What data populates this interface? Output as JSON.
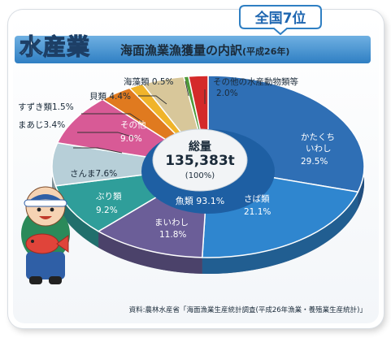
{
  "header": {
    "title": "水産業",
    "subtitle": "海面漁業漁獲量の内訳",
    "subtitle_year": "(平成26年)",
    "rank_badge": "全国7位"
  },
  "center": {
    "total_label": "総量",
    "total_value": "135,383t",
    "total_pct": "(100%)",
    "fish_label": "魚類 93.1%"
  },
  "source": "資料:農林水産省「海面漁業生産統計調査(平成26年漁業・養殖業生産統計)」",
  "colors": {
    "katakuchi": "#2f6fb5",
    "saba": "#2f86cf",
    "maiwashi": "#6b5e98",
    "buri": "#2f9e9a",
    "sanma": "#b7cfd8",
    "sonota": "#d85a96",
    "maaji": "#e07a1f",
    "suzuki": "#f0b42a",
    "kai": "#d8c79a",
    "kaiso": "#4f9a3a",
    "others": "#d42a2a"
  },
  "chart_data": {
    "type": "pie",
    "title": "海面漁業漁獲量の内訳(平成26年)",
    "total": "135,383t",
    "slices": [
      {
        "label": "かたくちいわし",
        "value": 29.5,
        "color_key": "katakuchi"
      },
      {
        "label": "さば類",
        "value": 21.1,
        "color_key": "saba"
      },
      {
        "label": "まいわし",
        "value": 11.8,
        "color_key": "maiwashi"
      },
      {
        "label": "ぶり類",
        "value": 9.2,
        "color_key": "buri"
      },
      {
        "label": "さんま",
        "value": 7.6,
        "color_key": "sanma"
      },
      {
        "label": "その他",
        "value": 9.0,
        "color_key": "sonota"
      },
      {
        "label": "まあじ",
        "value": 3.4,
        "color_key": "maaji"
      },
      {
        "label": "すずき類",
        "value": 1.5,
        "color_key": "suzuki"
      },
      {
        "label": "貝類",
        "value": 4.4,
        "color_key": "kai"
      },
      {
        "label": "海藻類",
        "value": 0.5,
        "color_key": "kaiso"
      },
      {
        "label": "その他の水産動物類等",
        "value": 2.0,
        "color_key": "others"
      }
    ],
    "slice_texts": {
      "katakuchi_l1": "かたくち",
      "katakuchi_l2": "いわし",
      "katakuchi_pct": "29.5%",
      "saba_l1": "さば類",
      "saba_pct": "21.1%",
      "maiwashi_l1": "まいわし",
      "maiwashi_pct": "11.8%",
      "buri_l1": "ぶり類",
      "buri_pct": "9.2%",
      "sanma": "さんま7.6%",
      "sonota_l1": "その他",
      "sonota_pct": "9.0%",
      "maaji": "まあじ3.4%",
      "suzuki": "すずき類1.5%",
      "kai": "貝類 4.4%",
      "kaiso": "海藻類 0.5%",
      "others_l1": "その他の水産動物類等",
      "others_pct": "2.0%"
    }
  }
}
